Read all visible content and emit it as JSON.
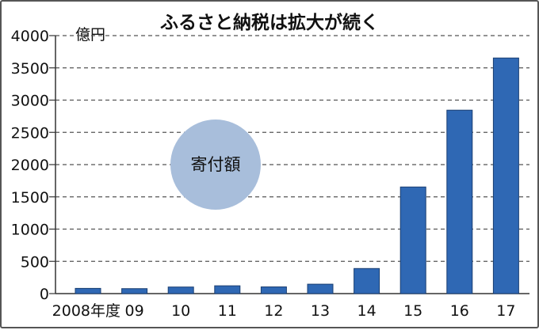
{
  "chart_data": {
    "type": "bar",
    "title": "ふるさと納税は拡大が続く",
    "ylabel": "億円",
    "xlabel": "",
    "categories": [
      "2008年度",
      "09",
      "10",
      "11",
      "12",
      "13",
      "14",
      "15",
      "16",
      "17"
    ],
    "values": [
      81,
      77,
      102,
      121,
      104,
      146,
      389,
      1653,
      2844,
      3653
    ],
    "ylim": [
      0,
      4000
    ],
    "yticks": [
      0,
      500,
      1000,
      1500,
      2000,
      2500,
      3000,
      3500,
      4000
    ],
    "grid": "dashed horizontal",
    "legend": {
      "label": "寄付額",
      "placement": "center-left"
    },
    "colors": {
      "bar": "#2f68b4",
      "bar_edge": "#1b3f72",
      "legend_bubble": "#a8bedb",
      "grid": "#555555"
    }
  }
}
